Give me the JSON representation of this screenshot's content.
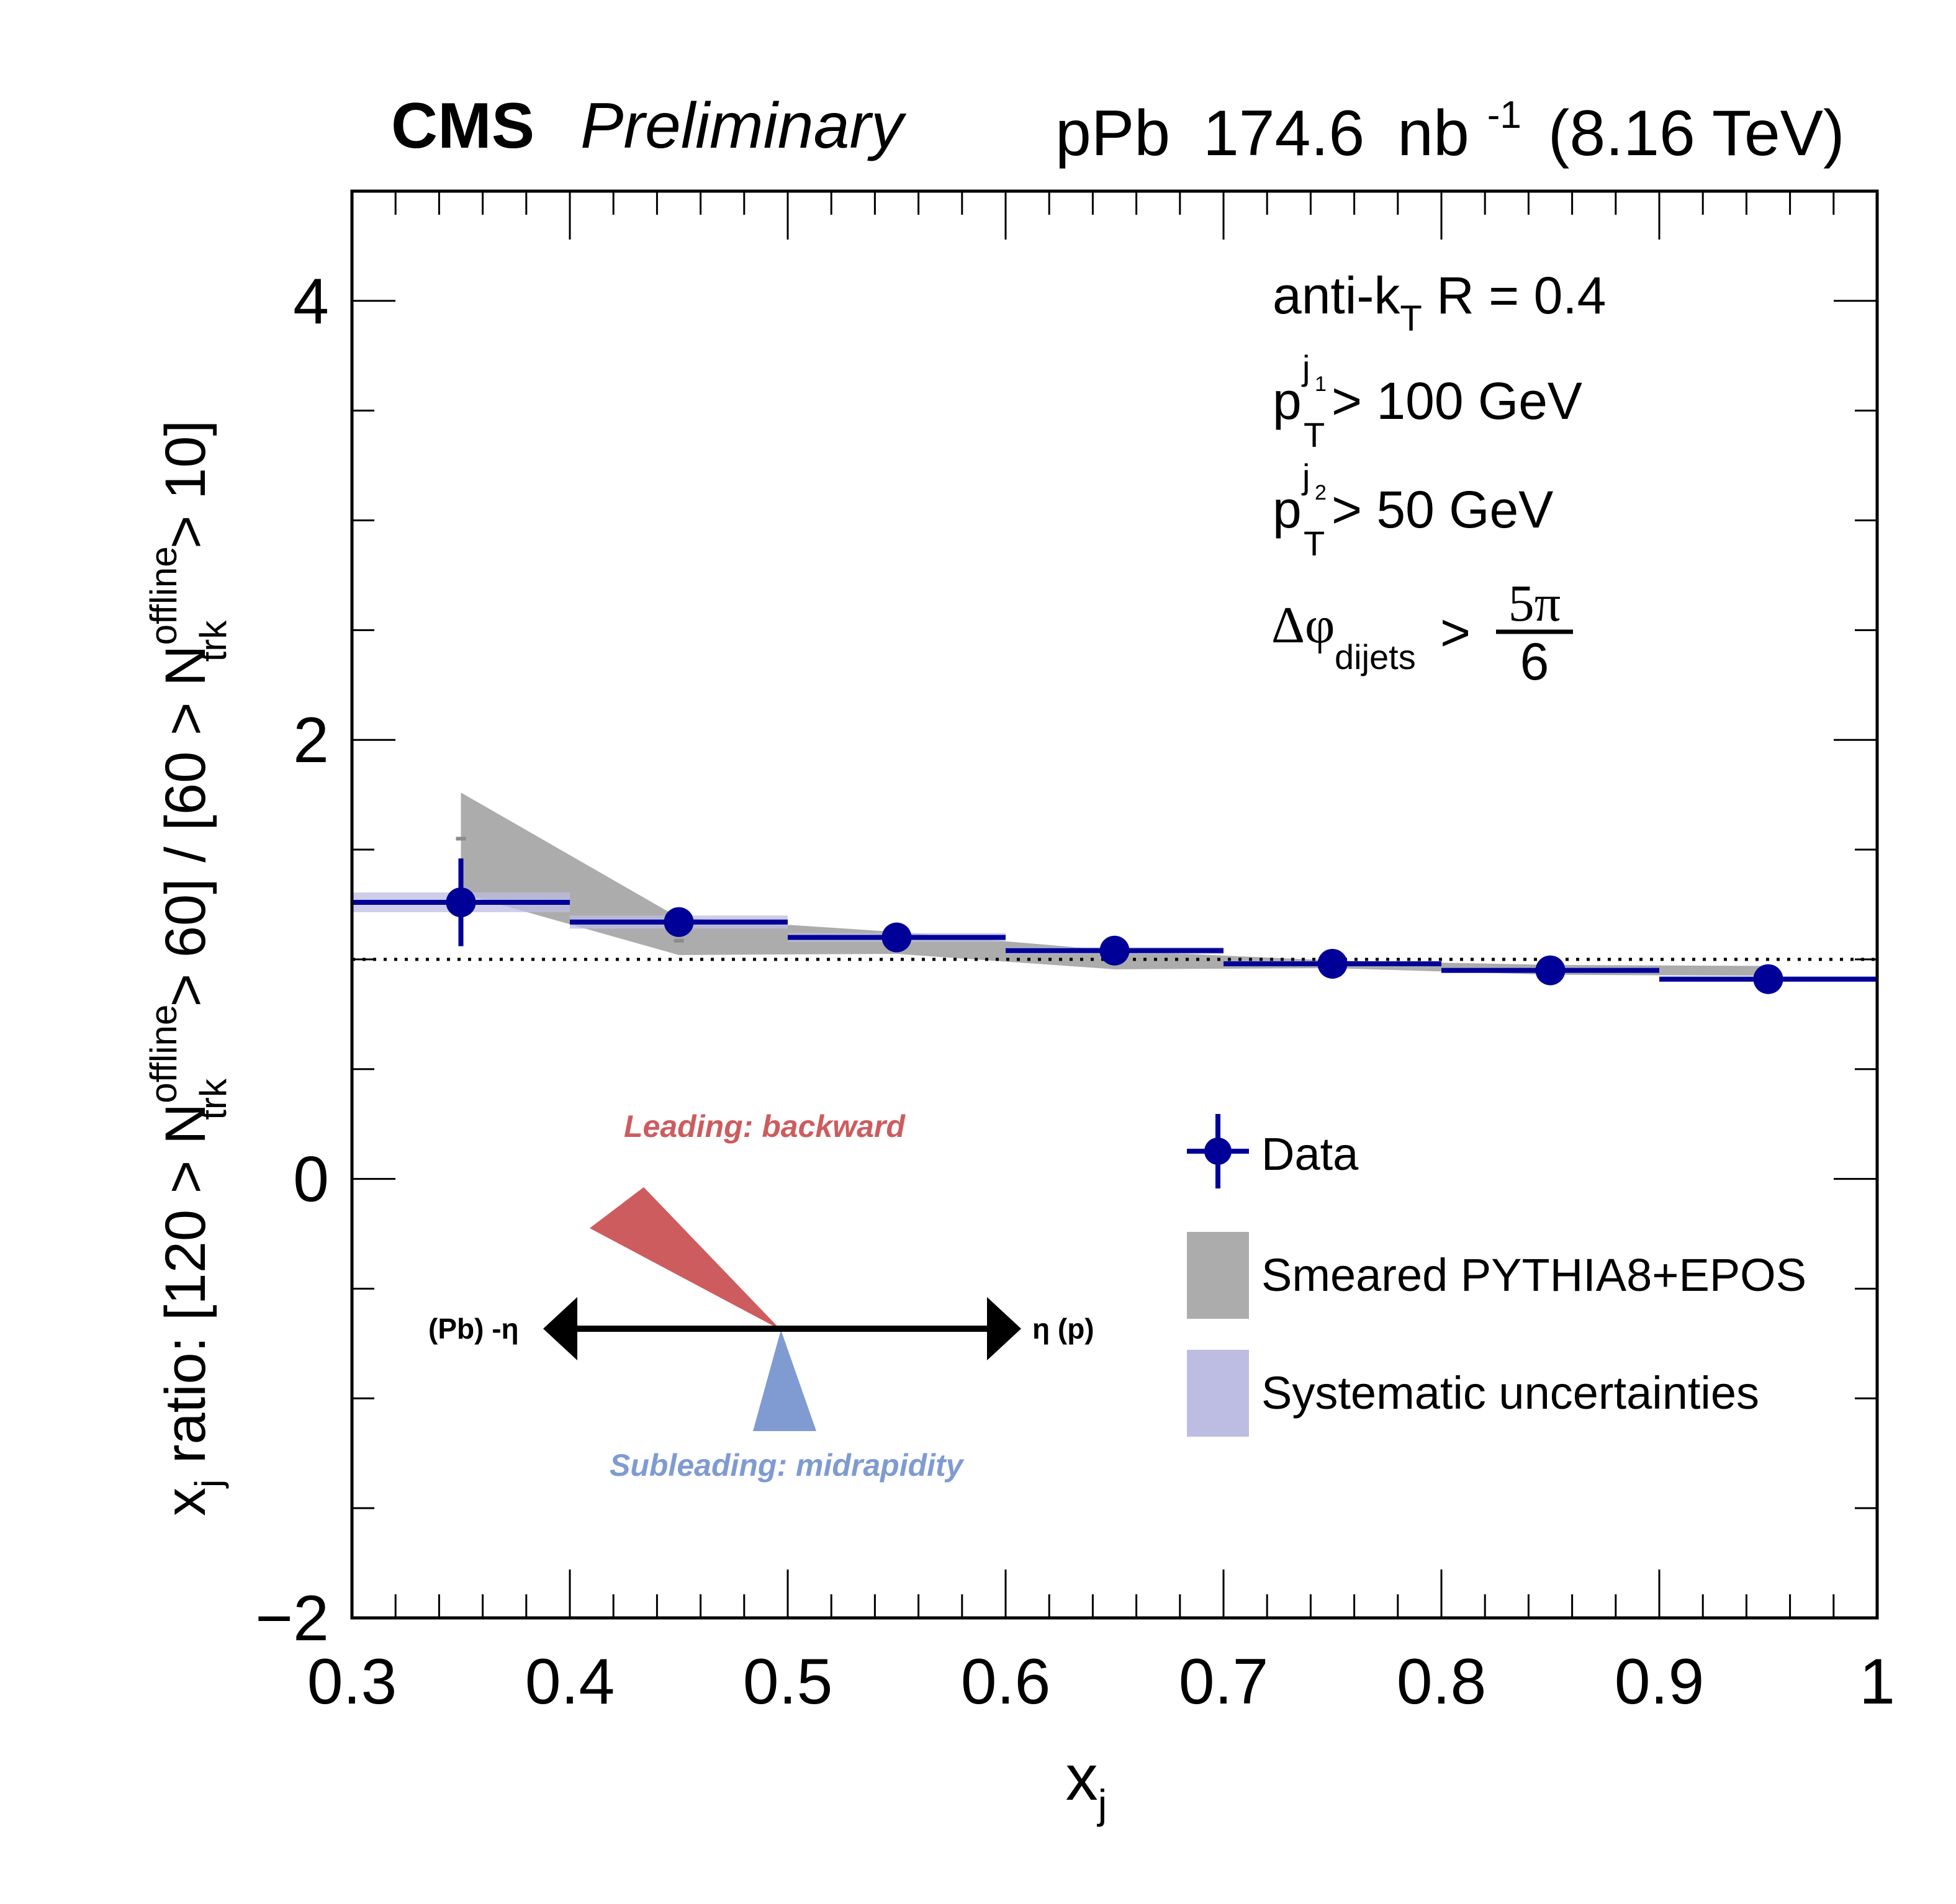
{
  "header": {
    "experiment": "CMS",
    "status": "Preliminary",
    "collision_system": "pPb",
    "luminosity_value": "174.6",
    "luminosity_unit": "nb",
    "luminosity_exp": "-1",
    "energy": "(8.16 TeV)"
  },
  "annotations": {
    "algo_main": "anti-k",
    "algo_sub": "T",
    "algo_rest": " R = 0.4",
    "pt1_main": "p",
    "pt1_sup": "j",
    "pt1_supsub": "1",
    "pt1_sub": "T",
    "pt1_rest": " > 100 GeV",
    "pt2_main": "p",
    "pt2_sup": "j",
    "pt2_supsub": "2",
    "pt2_sub": "T",
    "pt2_rest": " > 50 GeV",
    "dphi_main": "Δφ",
    "dphi_sub": "dijets",
    "dphi_gt": ">",
    "dphi_num": "5π",
    "dphi_den": "6"
  },
  "diagram": {
    "leading_label": "Leading: backward",
    "subleading_label": "Subleading: midrapidity",
    "left_label": "(Pb) -η",
    "right_label": "η (p)",
    "leading_color": "#cd5c5f",
    "subleading_color": "#7f9bd1"
  },
  "legend": {
    "items": [
      {
        "label": "Data",
        "kind": "marker"
      },
      {
        "label": "Smeared PYTHIA8+EPOS",
        "kind": "box"
      },
      {
        "label": "Systematic uncertainties",
        "kind": "box"
      }
    ]
  },
  "colors": {
    "data": "#000099",
    "syst_band": "#bdbde3",
    "model_band": "#acacac",
    "axis": "#000000"
  },
  "chart_data": {
    "type": "scatter",
    "title": "CMS Preliminary — pPb 174.6 nb^-1 (8.16 TeV)",
    "xlabel": "x_j",
    "ylabel": "x_j ratio: [120 > N_trk^offline > 60] / [60 > N_trk^offline > 10]",
    "xlim": [
      0.3,
      1.0
    ],
    "ylim": [
      -2,
      4.5
    ],
    "x_ticks": [
      0.3,
      0.4,
      0.5,
      0.6,
      0.7,
      0.8,
      0.9,
      1.0
    ],
    "x_tick_labels": [
      "0.3",
      "0.4",
      "0.5",
      "0.6",
      "0.7",
      "0.8",
      "0.9",
      "1"
    ],
    "y_ticks": [
      -2,
      0,
      2,
      4
    ],
    "y_tick_labels": [
      "−2",
      "0",
      "2",
      "4"
    ],
    "y_minor_step": 0.5,
    "x_minor_step": 0.02,
    "reference_line": 1.0,
    "grid": false,
    "legend_position": "bottom-right",
    "series": [
      {
        "name": "Data",
        "bin_edges": [
          0.3,
          0.4,
          0.5,
          0.6,
          0.7,
          0.8,
          0.9,
          1.0
        ],
        "x": [
          0.35,
          0.45,
          0.55,
          0.65,
          0.75,
          0.85,
          0.95
        ],
        "y": [
          1.26,
          1.17,
          1.1,
          1.04,
          0.98,
          0.95,
          0.91
        ],
        "stat_err": [
          0.2,
          0.01,
          0.01,
          0.01,
          0.01,
          0.01,
          0.01
        ],
        "syst_err": [
          0.045,
          0.03,
          0.02,
          0.015,
          0.012,
          0.012,
          0.012
        ]
      },
      {
        "name": "Smeared PYTHIA8+EPOS",
        "x": [
          0.35,
          0.45,
          0.55,
          0.65,
          0.75,
          0.85,
          0.95
        ],
        "band_upper": [
          1.76,
          1.19,
          1.125,
          1.04,
          0.995,
          0.975,
          0.97
        ],
        "band_lower": [
          1.3,
          1.02,
          1.025,
          0.955,
          0.96,
          0.93,
          0.925
        ],
        "central": [
          1.55,
          1.085,
          1.08,
          1.0,
          0.98,
          0.955,
          0.95
        ]
      }
    ]
  }
}
